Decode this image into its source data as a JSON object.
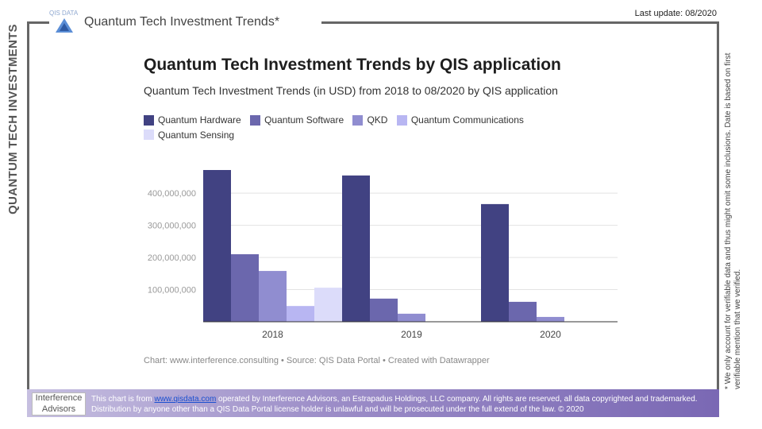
{
  "side_title": "QUANTUM TECH INVESTMENTS",
  "header": {
    "logo_small": "QIS DATA",
    "title": "Quantum Tech Investment Trends*",
    "last_update": "Last update: 08/2020"
  },
  "footnote": "* We only account for verifiable data and thus might omit some inclusions. Date is based on first verifiable mention that we verified.",
  "footer": {
    "logo_line1": "Interference",
    "logo_line2": "Advisors",
    "text_before": "This chart is from ",
    "link": "www.qisdata.com",
    "text_after": " operated by Interference Advisors, an Estrapadus Holdings, LLC company. All rights are reserved, all data copyrighted and trademarked. Distribution by anyone other than a QIS Data Portal license holder is unlawful and will be prosecuted under the full extend of the law. © 2020"
  },
  "caption": "Chart: www.interference.consulting • Source: QIS Data Portal • Created with Datawrapper",
  "colors": {
    "Quantum Hardware": "#414282",
    "Quantum Software": "#6b67ad",
    "QKD": "#908dd0",
    "Quantum Communications": "#b8b6f2",
    "Quantum Sensing": "#dcdcfa"
  },
  "chart_data": {
    "type": "bar",
    "title": "Quantum Tech Investment Trends by QIS application",
    "subtitle": "Quantum Tech Investment Trends (in USD) from 2018 to 08/2020 by QIS application",
    "categories": [
      "2018",
      "2019",
      "2020"
    ],
    "series": [
      {
        "name": "Quantum Hardware",
        "values": [
          472000000,
          455000000,
          366000000
        ]
      },
      {
        "name": "Quantum Software",
        "values": [
          210000000,
          72000000,
          62000000
        ]
      },
      {
        "name": "QKD",
        "values": [
          158000000,
          25000000,
          15000000
        ]
      },
      {
        "name": "Quantum Communications",
        "values": [
          49000000,
          0,
          0
        ]
      },
      {
        "name": "Quantum Sensing",
        "values": [
          106000000,
          0,
          0
        ]
      }
    ],
    "yticks": [
      "100,000,000",
      "200,000,000",
      "300,000,000",
      "400,000,000"
    ],
    "ytick_values": [
      100000000,
      200000000,
      300000000,
      400000000
    ],
    "ylim": [
      0,
      472000000
    ],
    "grid": true,
    "legend": "top-left"
  }
}
